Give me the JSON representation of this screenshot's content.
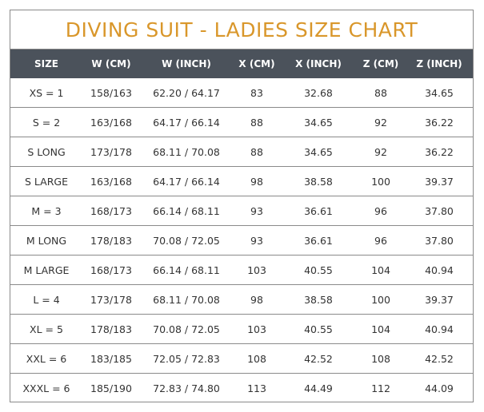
{
  "title": "DIVING SUIT - LADIES SIZE CHART",
  "colors": {
    "title": "#d9972b",
    "header_bg": "#4b525b",
    "header_text": "#ffffff",
    "border": "#8a8a8a"
  },
  "headers": [
    "SIZE",
    "W (CM)",
    "W (INCH)",
    "X (CM)",
    "X (INCH)",
    "Z (CM)",
    "Z (INCH)"
  ],
  "rows": [
    [
      "XS = 1",
      "158/163",
      "62.20 / 64.17",
      "83",
      "32.68",
      "88",
      "34.65"
    ],
    [
      "S = 2",
      "163/168",
      "64.17 / 66.14",
      "88",
      "34.65",
      "92",
      "36.22"
    ],
    [
      "S LONG",
      "173/178",
      "68.11 / 70.08",
      "88",
      "34.65",
      "92",
      "36.22"
    ],
    [
      "S LARGE",
      "163/168",
      "64.17 / 66.14",
      "98",
      "38.58",
      "100",
      "39.37"
    ],
    [
      "M = 3",
      "168/173",
      "66.14 / 68.11",
      "93",
      "36.61",
      "96",
      "37.80"
    ],
    [
      "M LONG",
      "178/183",
      "70.08 / 72.05",
      "93",
      "36.61",
      "96",
      "37.80"
    ],
    [
      "M LARGE",
      "168/173",
      "66.14 / 68.11",
      "103",
      "40.55",
      "104",
      "40.94"
    ],
    [
      "L = 4",
      "173/178",
      "68.11 / 70.08",
      "98",
      "38.58",
      "100",
      "39.37"
    ],
    [
      "XL = 5",
      "178/183",
      "70.08 / 72.05",
      "103",
      "40.55",
      "104",
      "40.94"
    ],
    [
      "XXL = 6",
      "183/185",
      "72.05 / 72.83",
      "108",
      "42.52",
      "108",
      "42.52"
    ],
    [
      "XXXL = 6",
      "185/190",
      "72.83 / 74.80",
      "113",
      "44.49",
      "112",
      "44.09"
    ]
  ]
}
